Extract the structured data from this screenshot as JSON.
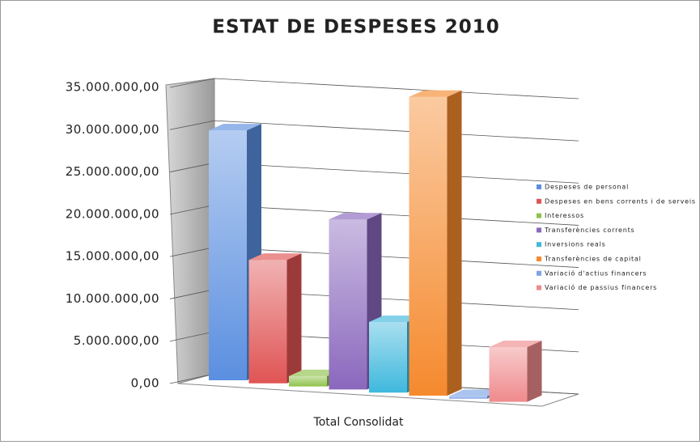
{
  "chart_data": {
    "type": "bar3d",
    "title": "ESTAT DE DESPESES 2010",
    "categories": [
      "Total Consolidat"
    ],
    "series": [
      {
        "name": "Despeses de personal",
        "color": "#5b8fe0",
        "values": [
          29700000
        ]
      },
      {
        "name": "Despeses en bens corrents i de serveis",
        "color": "#e05454",
        "values": [
          14500000
        ]
      },
      {
        "name": "Interessos",
        "color": "#8fc24a",
        "values": [
          1200000
        ]
      },
      {
        "name": "Transferències corrents",
        "color": "#8a68bd",
        "values": [
          19500000
        ]
      },
      {
        "name": "Inversions reals",
        "color": "#3fb8dd",
        "values": [
          8000000
        ]
      },
      {
        "name": "Transferències de capital",
        "color": "#f58a2e",
        "values": [
          33500000
        ]
      },
      {
        "name": "Variació d'actius financers",
        "color": "#7ea3e6",
        "values": [
          300000
        ]
      },
      {
        "name": "Variació de passius financers",
        "color": "#ef8a8c",
        "values": [
          6000000
        ]
      }
    ],
    "ylim": [
      0,
      35000000
    ],
    "yticks": [
      {
        "value": 0,
        "label": "0,00"
      },
      {
        "value": 5000000,
        "label": "5.000.000,00"
      },
      {
        "value": 10000000,
        "label": "10.000.000,00"
      },
      {
        "value": 15000000,
        "label": "15.000.000,00"
      },
      {
        "value": 20000000,
        "label": "20.000.000,00"
      },
      {
        "value": 25000000,
        "label": "25.000.000,00"
      },
      {
        "value": 30000000,
        "label": "30.000.000,00"
      },
      {
        "value": 35000000,
        "label": "35.000.000,00"
      }
    ],
    "grid": true
  }
}
